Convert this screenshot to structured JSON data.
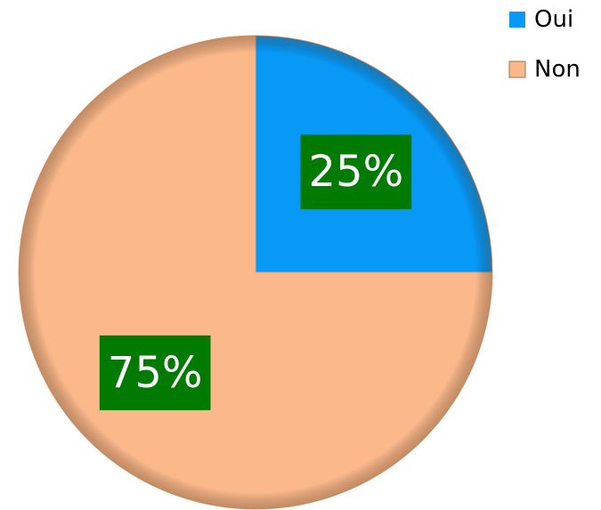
{
  "chart_data": {
    "type": "pie",
    "categories": [
      "Oui",
      "Non"
    ],
    "values": [
      25,
      75
    ],
    "value_labels": [
      "25%",
      "75%"
    ],
    "colors": [
      "#0899f7",
      "#fbb88a"
    ],
    "label_background": "#007a00",
    "legend": "top-right"
  }
}
